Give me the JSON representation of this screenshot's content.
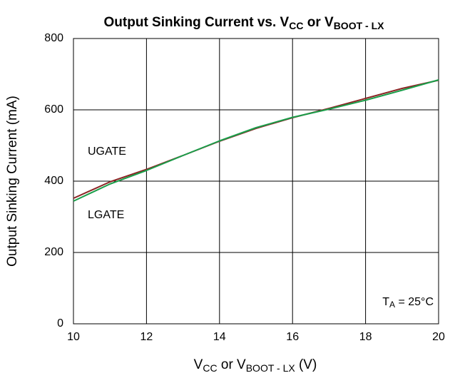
{
  "chart_data": {
    "type": "line",
    "title": [
      {
        "text": "Output Sinking Current vs. V"
      },
      {
        "text": "CC",
        "sub": true
      },
      {
        "text": " or V"
      },
      {
        "text": "BOOT - LX",
        "sub": true
      }
    ],
    "x_label": [
      {
        "text": "V"
      },
      {
        "text": "CC",
        "sub": true
      },
      {
        "text": " or V"
      },
      {
        "text": "BOOT - LX",
        "sub": true
      },
      {
        "text": " (V)"
      }
    ],
    "y_label": "Output Sinking Current (mA)",
    "annotation": [
      {
        "text": "T"
      },
      {
        "text": "A",
        "sub": true
      },
      {
        "text": " = 25°C"
      }
    ],
    "x": [
      10,
      11,
      12,
      13,
      14,
      15,
      16,
      17,
      18,
      19,
      20
    ],
    "series": [
      {
        "name": "UGATE",
        "color": "#8b2525",
        "values": [
          352,
          398,
          433,
          472,
          512,
          548,
          578,
          604,
          632,
          660,
          683
        ]
      },
      {
        "name": "LGATE",
        "color": "#1a9e4a",
        "values": [
          344,
          392,
          430,
          472,
          513,
          550,
          579,
          602,
          627,
          655,
          684
        ]
      }
    ],
    "xlim": [
      10,
      20
    ],
    "xticks": [
      10,
      12,
      14,
      16,
      18,
      20
    ],
    "ylim": [
      0,
      800
    ],
    "yticks": [
      0,
      200,
      400,
      600,
      800
    ],
    "grid": true
  }
}
